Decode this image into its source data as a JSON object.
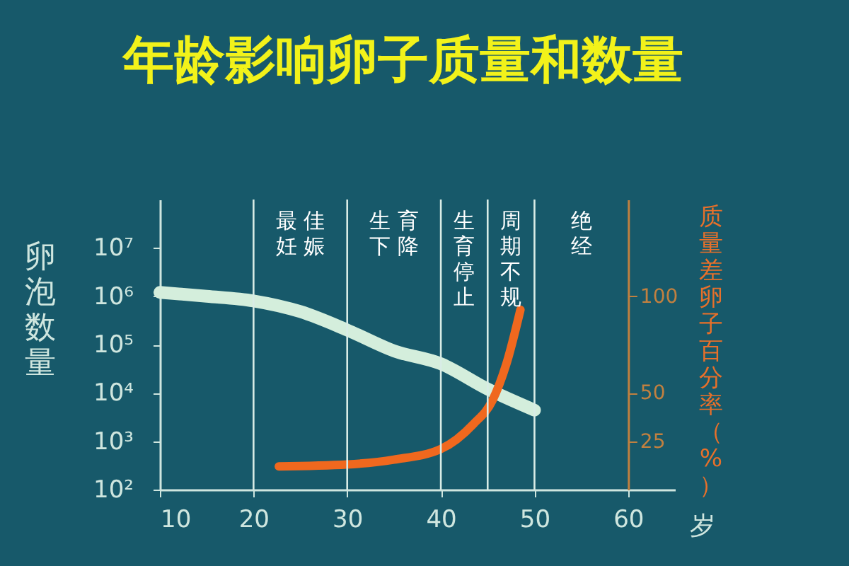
{
  "chart_data": {
    "type": "line",
    "title": "年龄影响卵子质量和数量",
    "xlabel": "岁",
    "ylabel": "卵泡数量",
    "y2label": "质量差卵子百分率（%）",
    "xlim": [
      10,
      65
    ],
    "xticks": [
      10,
      20,
      30,
      40,
      50,
      60
    ],
    "ylim": [
      100,
      100000000
    ],
    "yticks": [
      {
        "value": 100,
        "label": "10²"
      },
      {
        "value": 1000,
        "label": "10³"
      },
      {
        "value": 10000,
        "label": "10⁴"
      },
      {
        "value": 100000,
        "label": "10⁵"
      },
      {
        "value": 1000000,
        "label": "10⁶"
      },
      {
        "value": 10000000,
        "label": "10⁷"
      }
    ],
    "log": "y",
    "y2lim": [
      0,
      150
    ],
    "y2ticks": [
      25,
      50,
      100
    ],
    "series": [
      {
        "color": "#d4eedc",
        "x": [
          10,
          15,
          20,
          25,
          30,
          35,
          40,
          45,
          50
        ],
        "values": [
          1200000,
          1000000,
          800000,
          480000,
          200000,
          74000,
          40000,
          12000,
          4400
        ]
      },
      {
        "color": "#f0681e",
        "axis": "y2",
        "x": [
          22.7,
          30,
          35,
          40,
          43.5,
          45.5,
          47,
          48.5
        ],
        "values": [
          12,
          13,
          15.5,
          21,
          34,
          46,
          65,
          93
        ]
      }
    ],
    "ref_lines": [
      {
        "axis": "x",
        "value": 20
      },
      {
        "axis": "x",
        "value": 30
      },
      {
        "axis": "x",
        "value": 40
      },
      {
        "axis": "x",
        "value": 45
      },
      {
        "axis": "x",
        "value": 50
      }
    ],
    "annotations": [
      "最佳妊娠",
      "生育下降",
      "生育停止",
      "周期不规",
      "绝经"
    ]
  }
}
